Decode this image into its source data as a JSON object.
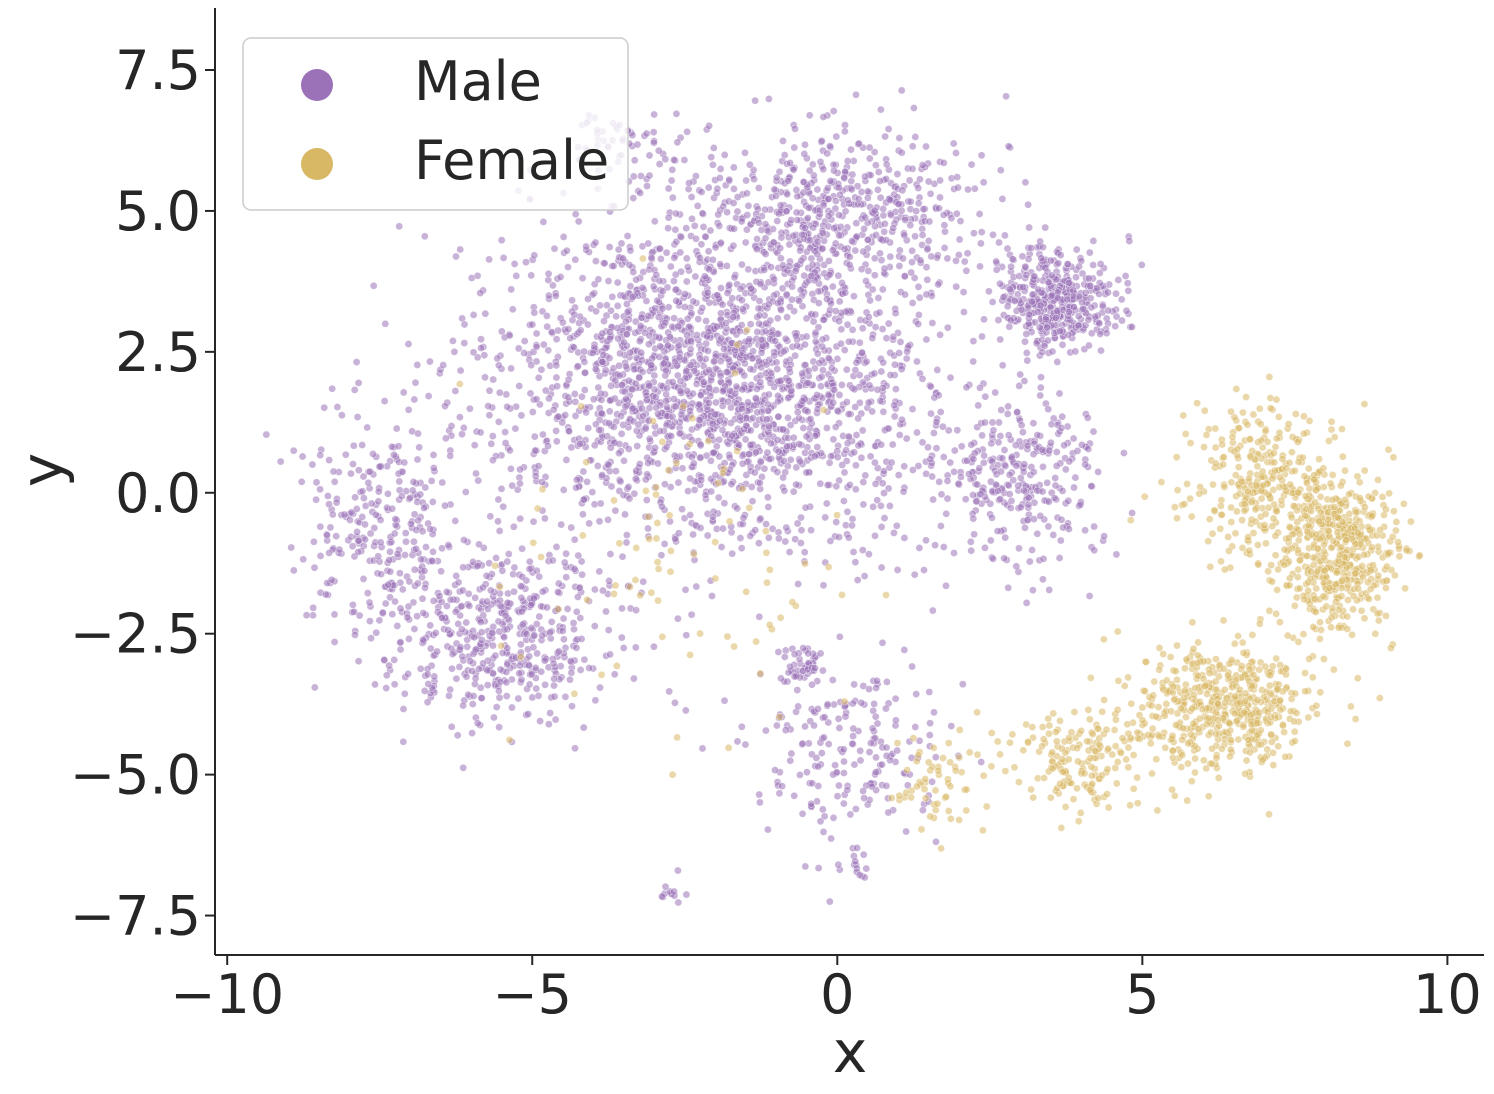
{
  "chart_data": {
    "type": "scatter",
    "title": "",
    "xlabel": "x",
    "ylabel": "y",
    "xlim": [
      -10.2,
      10.6
    ],
    "ylim": [
      -8.2,
      8.6
    ],
    "x_ticks": [
      -10,
      -5,
      0,
      5,
      10
    ],
    "x_tick_labels": [
      "−10",
      "−5",
      "0",
      "5",
      "10"
    ],
    "y_ticks": [
      7.5,
      5.0,
      2.5,
      0.0,
      -2.5,
      -5.0,
      -7.5
    ],
    "y_tick_labels": [
      "7.5",
      "5.0",
      "2.5",
      "0.0",
      "−2.5",
      "−5.0",
      "−7.5"
    ],
    "grid": false,
    "legend_position": "top-left",
    "series": [
      {
        "name": "Male",
        "color": "#9b72b8",
        "clusters": [
          {
            "center": [
              -2.0,
              2.0
            ],
            "spread": [
              3.2,
              2.6
            ],
            "count": 2200
          },
          {
            "center": [
              -5.5,
              -2.5
            ],
            "spread": [
              1.8,
              1.4
            ],
            "count": 500
          },
          {
            "center": [
              -7.5,
              -0.5
            ],
            "spread": [
              1.1,
              2.0
            ],
            "count": 280
          },
          {
            "center": [
              0.0,
              5.0
            ],
            "spread": [
              2.2,
              1.3
            ],
            "count": 550
          },
          {
            "center": [
              3.6,
              3.4
            ],
            "spread": [
              0.9,
              0.8
            ],
            "count": 420
          },
          {
            "center": [
              3.0,
              0.3
            ],
            "spread": [
              1.3,
              1.5
            ],
            "count": 300
          },
          {
            "center": [
              -0.6,
              -3.1
            ],
            "spread": [
              0.3,
              0.3
            ],
            "count": 50
          },
          {
            "center": [
              0.2,
              -4.5
            ],
            "spread": [
              1.5,
              1.4
            ],
            "count": 200
          },
          {
            "center": [
              -2.7,
              -7.1
            ],
            "spread": [
              0.2,
              0.2
            ],
            "count": 12
          },
          {
            "center": [
              0.3,
              -6.6
            ],
            "spread": [
              0.25,
              0.25
            ],
            "count": 15
          },
          {
            "center": [
              -3.5,
              6.2
            ],
            "spread": [
              1.0,
              0.8
            ],
            "count": 60
          }
        ]
      },
      {
        "name": "Female",
        "color": "#d8b865",
        "clusters": [
          {
            "center": [
              6.3,
              -3.8
            ],
            "spread": [
              1.3,
              1.0
            ],
            "count": 500
          },
          {
            "center": [
              8.2,
              -1.0
            ],
            "spread": [
              0.9,
              1.3
            ],
            "count": 500
          },
          {
            "center": [
              7.0,
              0.2
            ],
            "spread": [
              1.2,
              1.3
            ],
            "count": 300
          },
          {
            "center": [
              4.0,
              -4.7
            ],
            "spread": [
              1.1,
              0.9
            ],
            "count": 180
          },
          {
            "center": [
              1.5,
              -5.2
            ],
            "spread": [
              0.8,
              0.9
            ],
            "count": 60
          },
          {
            "center": [
              -3.0,
              -1.0
            ],
            "spread": [
              3.2,
              3.0
            ],
            "count": 90
          }
        ]
      }
    ]
  },
  "legend": {
    "items": [
      {
        "label": "Male",
        "color": "#9b72b8"
      },
      {
        "label": "Female",
        "color": "#d8b865"
      }
    ]
  }
}
